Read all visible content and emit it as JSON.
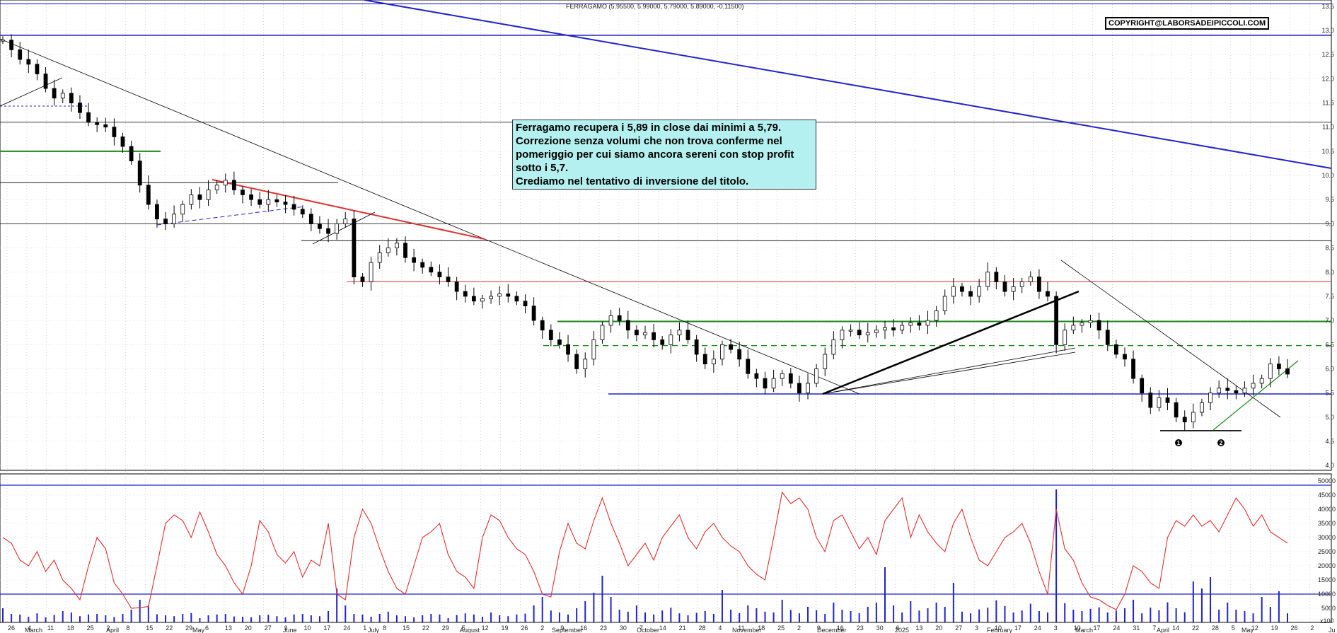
{
  "chart_data": {
    "type": "candlestick",
    "title": "FERRAGAMO (5.95500, 5.99000, 5.79000, 5.89000, -0.11500)",
    "copyright": "COPYRIGHT@LABORSADEIPICCOLI.COM",
    "comment_lines": [
      "Ferragamo recupera i 5,89 in close dai minimi a 5,79.",
      "Correzione senza volumi che non trova conferme nel",
      "pomeriggio per cui siamo ancora sereni con stop profit",
      "sotto i 5,7.",
      "Crediamo nel tentativo di inversione del titolo."
    ],
    "price_axis": {
      "range": [
        3.9,
        13.6
      ],
      "ticks": [
        "13.5",
        "13.0",
        "12.5",
        "12.0",
        "11.5",
        "11.0",
        "10.5",
        "10.0",
        "9.5",
        "9.0",
        "8.5",
        "8.0",
        "7.5",
        "7.0",
        "6.5",
        "6.0",
        "5.5",
        "5.0",
        "4.5",
        "4.0"
      ]
    },
    "volume_axis": {
      "range": [
        0,
        52000
      ],
      "ticks": [
        "50000",
        "45000",
        "40000",
        "35000",
        "30000",
        "25000",
        "20000",
        "15000",
        "10000",
        "5000"
      ],
      "unit_label": "x100"
    },
    "day_labels": [
      "26",
      "4",
      "11",
      "18",
      "25",
      "2",
      "8",
      "15",
      "22",
      "29",
      "6",
      "13",
      "20",
      "27",
      "3",
      "10",
      "17",
      "24",
      "1",
      "8",
      "15",
      "22",
      "29",
      "5",
      "12",
      "19",
      "26",
      "2",
      "9",
      "16",
      "23",
      "30",
      "7",
      "14",
      "21",
      "28",
      "4",
      "11",
      "18",
      "25",
      "2",
      "9",
      "16",
      "23",
      "30",
      "6",
      "13",
      "20",
      "27",
      "3",
      "10",
      "17",
      "24",
      "3",
      "10",
      "17",
      "24",
      "31",
      "7",
      "14",
      "22",
      "28",
      "5",
      "12",
      "19",
      "26",
      "2"
    ],
    "month_labels": [
      "March",
      "April",
      "May",
      "June",
      "July",
      "August",
      "September",
      "October",
      "November",
      "December",
      "2025",
      "February",
      "March",
      "April",
      "May",
      "Ju"
    ],
    "markers": [
      "1",
      "2"
    ],
    "price_series": [
      12.8,
      12.6,
      12.4,
      12.3,
      12.1,
      11.8,
      11.6,
      11.7,
      11.5,
      11.3,
      11.1,
      11.05,
      11.0,
      10.8,
      10.6,
      10.3,
      9.8,
      9.4,
      9.1,
      9.0,
      9.2,
      9.4,
      9.6,
      9.5,
      9.7,
      9.8,
      9.9,
      9.7,
      9.6,
      9.5,
      9.4,
      9.5,
      9.45,
      9.4,
      9.3,
      9.2,
      9.0,
      8.9,
      8.8,
      9.0,
      9.1,
      7.9,
      7.8,
      8.2,
      8.4,
      8.5,
      8.6,
      8.3,
      8.2,
      8.1,
      8.0,
      7.9,
      7.8,
      7.6,
      7.5,
      7.4,
      7.45,
      7.5,
      7.55,
      7.5,
      7.4,
      7.3,
      7.0,
      6.8,
      6.6,
      6.5,
      6.3,
      6.0,
      6.2,
      6.6,
      6.9,
      7.1,
      7.0,
      6.8,
      6.7,
      6.75,
      6.6,
      6.5,
      6.7,
      6.8,
      6.6,
      6.3,
      6.1,
      6.2,
      6.5,
      6.4,
      6.2,
      5.9,
      5.8,
      5.6,
      5.8,
      5.9,
      5.7,
      5.5,
      5.7,
      6.0,
      6.3,
      6.6,
      6.8,
      6.8,
      6.7,
      6.75,
      6.8,
      6.85,
      6.8,
      6.9,
      6.95,
      6.9,
      7.0,
      7.2,
      7.5,
      7.7,
      7.6,
      7.5,
      7.7,
      8.0,
      7.8,
      7.6,
      7.7,
      7.8,
      7.9,
      7.6,
      7.5,
      6.5,
      6.8,
      6.9,
      6.95,
      7.0,
      6.8,
      6.5,
      6.3,
      6.2,
      5.8,
      5.5,
      5.2,
      5.4,
      5.3,
      5.0,
      4.9,
      5.1,
      5.3,
      5.5,
      5.6,
      5.55,
      5.5,
      5.6,
      5.7,
      5.8,
      6.1,
      6.0,
      5.89
    ],
    "volume_series": [
      5000,
      3000,
      2800,
      2000,
      3200,
      1800,
      2600,
      4000,
      3500,
      2200,
      2800,
      3000,
      2500,
      1900,
      3000,
      4500,
      8000,
      6000,
      2900,
      2500,
      2200,
      3000,
      3300,
      1500,
      2500,
      2800,
      3000,
      2100,
      2000,
      1800,
      2500,
      2700,
      2200,
      1800,
      2800,
      3000,
      2500,
      2200,
      4000,
      12000,
      6000,
      3000,
      2800,
      2000,
      3000,
      3800,
      2500,
      2200,
      1800,
      2500,
      3000,
      2800,
      1500,
      2600,
      3200,
      2800,
      2000,
      3500,
      2500,
      2200,
      2800,
      3100,
      6000,
      9000,
      4200,
      3500,
      2800,
      5000,
      7500,
      10500,
      16500,
      9000,
      4500,
      3800,
      6000,
      3500,
      2800,
      4200,
      5200,
      3200,
      2500,
      3400,
      4000,
      3000,
      11500,
      4500,
      3300,
      6000,
      5000,
      3800,
      3500,
      8000,
      4400,
      3200,
      5500,
      4300,
      3000,
      7000,
      4500,
      4000,
      3300,
      5500,
      7000,
      19500,
      6000,
      3500,
      7500,
      4200,
      5000,
      7000,
      5500,
      14000,
      3800,
      3200,
      4600,
      5200,
      7800,
      5800,
      3500,
      4200,
      6600,
      4000,
      3500,
      47000,
      6800,
      4500,
      4000,
      4800,
      5300,
      3500,
      4200,
      5000,
      8000,
      3200,
      5200,
      4300,
      7100,
      5000,
      3600,
      14500,
      12000,
      16000,
      4500,
      7000,
      4500,
      4000,
      3200,
      9000,
      5500,
      11000,
      3200
    ],
    "volume_avg_series": [
      30000,
      28000,
      22000,
      20000,
      25000,
      18000,
      22000,
      15000,
      12000,
      8000,
      20000,
      30000,
      26000,
      14000,
      10000,
      5000,
      5200,
      5600,
      20000,
      35000,
      38000,
      36000,
      30000,
      39000,
      32000,
      24000,
      20000,
      14000,
      10000,
      20000,
      36000,
      32000,
      24000,
      21000,
      25000,
      16000,
      22000,
      20000,
      35000,
      10000,
      8000,
      30000,
      40000,
      35000,
      26000,
      18000,
      12000,
      10000,
      20000,
      30000,
      32000,
      35000,
      24000,
      18000,
      16000,
      12000,
      30000,
      38000,
      36000,
      30000,
      26000,
      24000,
      18000,
      10000,
      9000,
      25000,
      35000,
      28000,
      26000,
      36000,
      44000,
      35000,
      28000,
      20000,
      24000,
      28000,
      22000,
      30000,
      34000,
      38000,
      30000,
      26000,
      32000,
      35000,
      30000,
      27000,
      25000,
      20000,
      17000,
      15000,
      30000,
      46000,
      42000,
      44000,
      40000,
      30000,
      25000,
      36000,
      38000,
      32000,
      26000,
      30000,
      24000,
      36000,
      40000,
      44000,
      30000,
      38000,
      32000,
      28000,
      25000,
      35000,
      40000,
      30000,
      22000,
      20000,
      25000,
      30000,
      32000,
      35000,
      28000,
      18000,
      10000,
      40000,
      26000,
      22000,
      14000,
      9000,
      8000,
      6000,
      4500,
      10000,
      20000,
      18000,
      14000,
      12000,
      30000,
      36000,
      34000,
      38000,
      34000,
      36000,
      32000,
      38000,
      44000,
      40000,
      34000,
      38000,
      32000,
      30000,
      28000
    ]
  }
}
